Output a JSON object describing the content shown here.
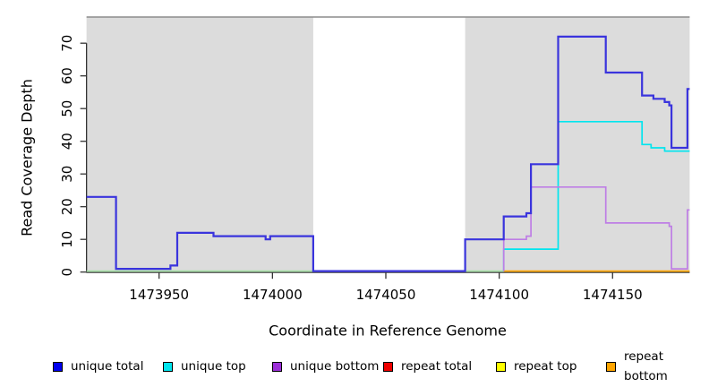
{
  "figure": {
    "kind": "R coverage step plot"
  },
  "chart_data": {
    "type": "line",
    "subtype": "step-coverage",
    "title": "",
    "xlabel": "Coordinate in Reference Genome",
    "ylabel": "Read Coverage Depth",
    "x_domain": [
      1473918,
      1474184
    ],
    "y_domain": [
      0,
      78
    ],
    "x_ticks": [
      1473950,
      1474000,
      1474050,
      1474100,
      1474150
    ],
    "y_ticks": [
      0,
      10,
      20,
      30,
      40,
      50,
      60,
      70
    ],
    "grid": false,
    "shaded_regions": [
      [
        1473918,
        1474018
      ],
      [
        1474085,
        1474184
      ]
    ],
    "gap_region": [
      1474018,
      1474085
    ],
    "colors": {
      "shaded_background": "#DCDCDC",
      "top_border": "#8C8C8C",
      "axis": "#333333"
    },
    "baseline_overlap_line": {
      "color": "#A6E0A6",
      "from": 1473918,
      "to": 1474102,
      "value": 0
    },
    "series": [
      {
        "name": "unique total",
        "line_color": "#3A34DD",
        "legend_color": "#0000EE",
        "steps": [
          [
            1473918,
            23
          ],
          [
            1473931,
            1
          ],
          [
            1473955,
            2
          ],
          [
            1473958,
            12
          ],
          [
            1473974,
            11
          ],
          [
            1473997,
            10
          ],
          [
            1473999,
            11
          ],
          [
            1474018,
            0
          ],
          [
            1474085,
            10
          ],
          [
            1474102,
            17
          ],
          [
            1474112,
            18
          ],
          [
            1474114,
            33
          ],
          [
            1474126,
            72
          ],
          [
            1474147,
            61
          ],
          [
            1474163,
            54
          ],
          [
            1474168,
            53
          ],
          [
            1474173,
            52
          ],
          [
            1474175,
            51
          ],
          [
            1474176,
            38
          ],
          [
            1474183,
            56
          ]
        ]
      },
      {
        "name": "unique top",
        "line_color": "#00E5EE",
        "legend_color": "#00E5EE",
        "steps": [
          [
            1474102,
            0
          ],
          [
            1474102,
            7
          ],
          [
            1474126,
            46
          ],
          [
            1474163,
            39
          ],
          [
            1474167,
            38
          ],
          [
            1474173,
            37
          ]
        ]
      },
      {
        "name": "unique bottom",
        "line_color": "#BE7EE5",
        "legend_color": "#9C2FD8",
        "steps": [
          [
            1474102,
            0
          ],
          [
            1474102,
            10
          ],
          [
            1474112,
            11
          ],
          [
            1474114,
            26
          ],
          [
            1474147,
            15
          ],
          [
            1474175,
            14
          ],
          [
            1474176,
            1
          ],
          [
            1474183,
            19
          ]
        ]
      },
      {
        "name": "repeat total",
        "line_color": "#EE0000",
        "legend_color": "#EE0000",
        "steps": [
          [
            1473918,
            0
          ]
        ],
        "hidden": true
      },
      {
        "name": "repeat top",
        "line_color": "#FFFF00",
        "legend_color": "#FFFF00",
        "steps": [
          [
            1473918,
            0
          ]
        ],
        "hidden": true
      },
      {
        "name": "repeat bottom",
        "line_color": "#FFA500",
        "legend_color": "#FFA500",
        "steps": [
          [
            1474102,
            0
          ]
        ]
      }
    ],
    "legend_position": "bottom"
  },
  "legend": {
    "items": [
      {
        "label": "unique total",
        "color": "#0000EE"
      },
      {
        "label": "unique top",
        "color": "#00E5EE"
      },
      {
        "label": "unique bottom",
        "color": "#9C2FD8"
      },
      {
        "label": "repeat total",
        "color": "#EE0000"
      },
      {
        "label": "repeat top",
        "color": "#FFFF00"
      },
      {
        "label": "repeat bottom",
        "color": "#FFA500"
      }
    ]
  }
}
